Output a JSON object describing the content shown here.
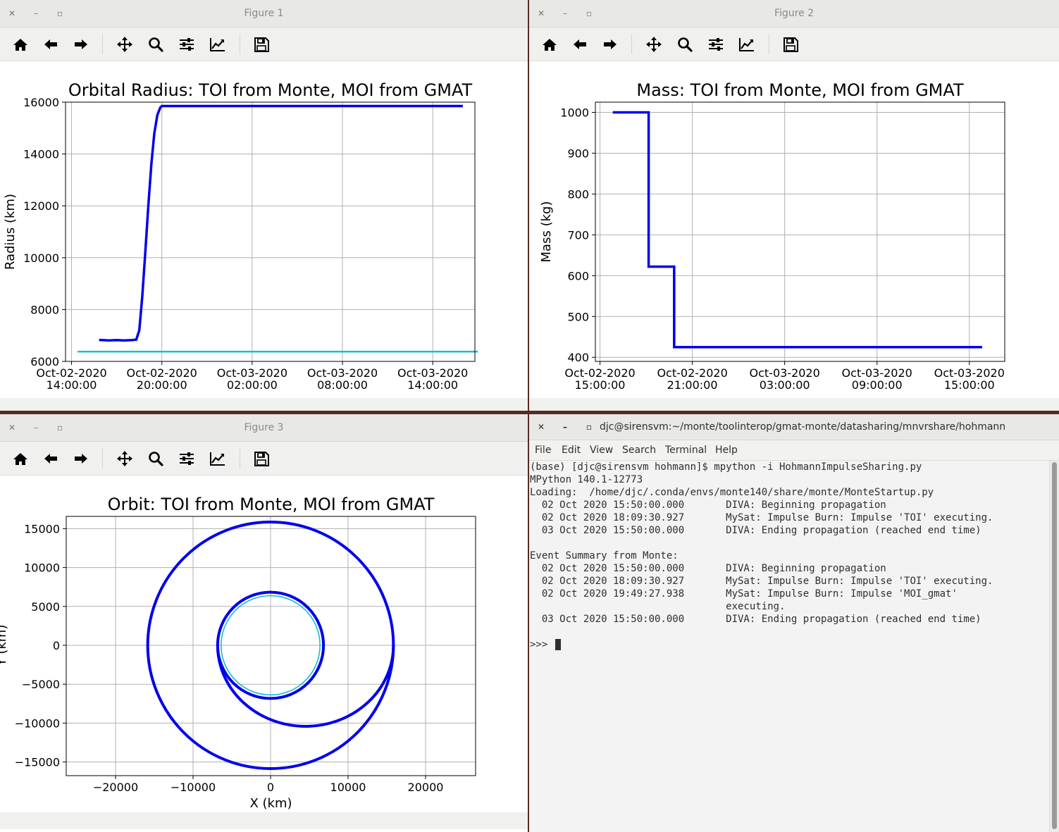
{
  "toolbar_icons": [
    "home-icon",
    "back-arrow-icon",
    "forward-arrow-icon",
    "pan-icon",
    "zoom-icon",
    "configure-subplots-icon",
    "edit-axis-icon",
    "save-icon"
  ],
  "colors": {
    "accent_line": "#0000ee",
    "reference_line": "#17becf",
    "grid": "#b0b0b0"
  },
  "fig1": {
    "window_title": "Figure 1",
    "chart_data": {
      "type": "line",
      "title": "Orbital Radius: TOI from Monte, MOI from GMAT",
      "xlabel": "Time (UTC)",
      "ylabel": "Radius (km)",
      "ylim": [
        6000,
        16000
      ],
      "xlim_hours_from_oct02_1400": [
        -0.4,
        26.8
      ],
      "yticks": [
        "6000",
        "8000",
        "10000",
        "12000",
        "14000",
        "16000"
      ],
      "xticks": [
        {
          "line1": "Oct-02-2020",
          "line2": "14:00:00"
        },
        {
          "line1": "Oct-02-2020",
          "line2": "20:00:00"
        },
        {
          "line1": "Oct-03-2020",
          "line2": "02:00:00"
        },
        {
          "line1": "Oct-03-2020",
          "line2": "08:00:00"
        },
        {
          "line1": "Oct-03-2020",
          "line2": "14:00:00"
        }
      ],
      "series": [
        {
          "color": "#0000ee",
          "points": [
            [
              1.83,
              6830
            ],
            [
              2.5,
              6810
            ],
            [
              3.0,
              6820
            ],
            [
              3.5,
              6810
            ],
            [
              4.0,
              6820
            ],
            [
              4.3,
              6840
            ],
            [
              4.5,
              7200
            ],
            [
              4.7,
              8500
            ],
            [
              4.9,
              10200
            ],
            [
              5.1,
              12000
            ],
            [
              5.3,
              13600
            ],
            [
              5.5,
              14800
            ],
            [
              5.7,
              15500
            ],
            [
              5.9,
              15800
            ],
            [
              6.0,
              15850
            ],
            [
              26.0,
              15850
            ]
          ]
        },
        {
          "color": "#17becf",
          "points": [
            [
              0.4,
              6378
            ],
            [
              27.0,
              6378
            ]
          ]
        }
      ]
    }
  },
  "fig2": {
    "window_title": "Figure 2",
    "chart_data": {
      "type": "line",
      "title": "Mass: TOI from Monte, MOI from GMAT",
      "xlabel": "Time (UTC)",
      "ylabel": "Mass (kg)",
      "ylim": [
        400,
        1000
      ],
      "yticks": [
        "400",
        "500",
        "600",
        "700",
        "800",
        "900",
        "1000"
      ],
      "xticks": [
        {
          "line1": "Oct-02-2020",
          "line2": "15:00:00"
        },
        {
          "line1": "Oct-02-2020",
          "line2": "21:00:00"
        },
        {
          "line1": "Oct-03-2020",
          "line2": "03:00:00"
        },
        {
          "line1": "Oct-03-2020",
          "line2": "09:00:00"
        },
        {
          "line1": "Oct-03-2020",
          "line2": "15:00:00"
        }
      ],
      "series": [
        {
          "color": "#0000ee",
          "points": [
            [
              0.83,
              1000
            ],
            [
              3.16,
              1000
            ],
            [
              3.16,
              622
            ],
            [
              4.82,
              622
            ],
            [
              4.82,
              425
            ],
            [
              24.83,
              425
            ]
          ]
        }
      ]
    }
  },
  "fig3": {
    "window_title": "Figure 3",
    "chart_data": {
      "type": "line",
      "title": "Orbit: TOI from Monte, MOI from GMAT",
      "xlabel": "X (km)",
      "ylabel": "Y (km)",
      "xlim": [
        -26500,
        26500
      ],
      "ylim": [
        -16500,
        16500
      ],
      "xticks": [
        "−20000",
        "−10000",
        "0",
        "10000",
        "20000"
      ],
      "yticks": [
        "15000",
        "10000",
        "5000",
        "0",
        "−5000",
        "−10000",
        "−15000"
      ],
      "series": [
        {
          "name": "initial orbit",
          "color": "#0000ee",
          "radius": 6830
        },
        {
          "name": "final orbit",
          "color": "#0000ee",
          "radius": 15850
        },
        {
          "name": "transfer ellipse",
          "color": "#0000ee",
          "periapsis": 6830,
          "apoapsis": 15850
        },
        {
          "name": "Earth surface",
          "color": "#17becf",
          "radius": 6378
        }
      ]
    }
  },
  "terminal": {
    "window_title": "djc@sirensvm:~/monte/toolinterop/gmat-monte/datasharing/mnvrshare/hohmann",
    "menu": [
      "File",
      "Edit",
      "View",
      "Search",
      "Terminal",
      "Help"
    ],
    "lines": [
      "(base) [djc@sirensvm hohmann]$ mpython -i HohmannImpulseSharing.py",
      "MPython 140.1-12773",
      "Loading:  /home/djc/.conda/envs/monte140/share/monte/MonteStartup.py",
      "  02 Oct 2020 15:50:00.000       DIVA: Beginning propagation",
      "  02 Oct 2020 18:09:30.927       MySat: Impulse Burn: Impulse 'TOI' executing.",
      "  03 Oct 2020 15:50:00.000       DIVA: Ending propagation (reached end time)",
      "",
      "Event Summary from Monte:",
      "  02 Oct 2020 15:50:00.000       DIVA: Beginning propagation",
      "  02 Oct 2020 18:09:30.927       MySat: Impulse Burn: Impulse 'TOI' executing.",
      "  02 Oct 2020 19:49:27.938       MySat: Impulse Burn: Impulse 'MOI_gmat'",
      "                                 executing.",
      "  03 Oct 2020 15:50:00.000       DIVA: Ending propagation (reached end time)",
      "",
      ">>> "
    ]
  }
}
